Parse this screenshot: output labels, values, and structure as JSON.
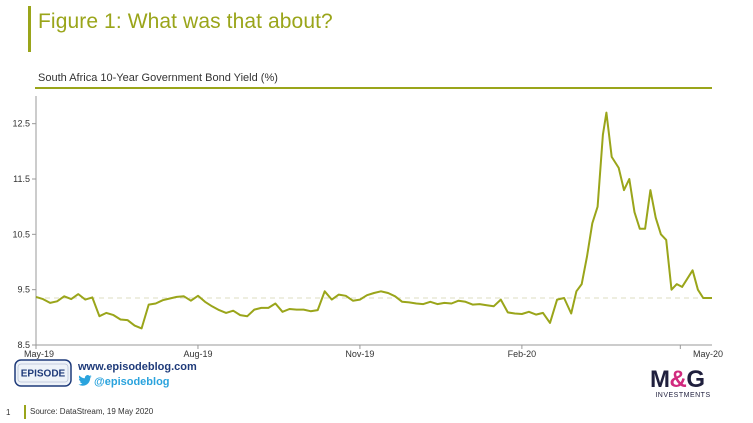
{
  "header": {
    "title": "Figure 1: What was that about?",
    "subtitle": "South Africa 10-Year Government Bond Yield (%)"
  },
  "chart_data": {
    "type": "line",
    "title": "South Africa 10-Year Government Bond Yield (%)",
    "xlabel": "",
    "ylabel": "",
    "ylim": [
      8.5,
      13.0
    ],
    "yticks": [
      "12.5",
      "11.5",
      "10.5",
      "9.5",
      "8.5"
    ],
    "ytick_values": [
      12.5,
      11.5,
      10.5,
      9.5,
      8.5
    ],
    "xtick_labels": [
      "May-19",
      "Aug-19",
      "Nov-19",
      "Feb-20",
      "May-20"
    ],
    "xtick_dates": [
      "2019-05-01",
      "2019-08-01",
      "2019-11-01",
      "2020-02-01",
      "2020-05-01"
    ],
    "x_range": [
      "2019-05-01",
      "2020-05-19"
    ],
    "reference_line": 9.35,
    "grid": false,
    "line_color": "#9aa51a",
    "series": [
      {
        "x": [
          "2019-05-01",
          "2019-05-05",
          "2019-05-09",
          "2019-05-13",
          "2019-05-17",
          "2019-05-21",
          "2019-05-25",
          "2019-05-29",
          "2019-06-02",
          "2019-06-06",
          "2019-06-10",
          "2019-06-14",
          "2019-06-18",
          "2019-06-22",
          "2019-06-26",
          "2019-06-30",
          "2019-07-04",
          "2019-07-08",
          "2019-07-12",
          "2019-07-16",
          "2019-07-20",
          "2019-07-24",
          "2019-07-28",
          "2019-08-01",
          "2019-08-05",
          "2019-08-09",
          "2019-08-13",
          "2019-08-17",
          "2019-08-21",
          "2019-08-25",
          "2019-08-29",
          "2019-09-02",
          "2019-09-06",
          "2019-09-10",
          "2019-09-14",
          "2019-09-18",
          "2019-09-22",
          "2019-09-26",
          "2019-09-30",
          "2019-10-04",
          "2019-10-08",
          "2019-10-12",
          "2019-10-16",
          "2019-10-20",
          "2019-10-24",
          "2019-10-28",
          "2019-11-01",
          "2019-11-05",
          "2019-11-09",
          "2019-11-13",
          "2019-11-17",
          "2019-11-21",
          "2019-11-25",
          "2019-11-29",
          "2019-12-03",
          "2019-12-07",
          "2019-12-11",
          "2019-12-15",
          "2019-12-19",
          "2019-12-23",
          "2019-12-27",
          "2019-12-31",
          "2020-01-04",
          "2020-01-08",
          "2020-01-12",
          "2020-01-16",
          "2020-01-20",
          "2020-01-24",
          "2020-01-28",
          "2020-02-01",
          "2020-02-05",
          "2020-02-09",
          "2020-02-13",
          "2020-02-17",
          "2020-02-21",
          "2020-02-25",
          "2020-02-29",
          "2020-03-03",
          "2020-03-06",
          "2020-03-09",
          "2020-03-12",
          "2020-03-15",
          "2020-03-18",
          "2020-03-20",
          "2020-03-23",
          "2020-03-25",
          "2020-03-27",
          "2020-03-30",
          "2020-04-02",
          "2020-04-05",
          "2020-04-08",
          "2020-04-11",
          "2020-04-14",
          "2020-04-17",
          "2020-04-20",
          "2020-04-23",
          "2020-04-26",
          "2020-04-29",
          "2020-05-02",
          "2020-05-05",
          "2020-05-08",
          "2020-05-11",
          "2020-05-14",
          "2020-05-19"
        ],
        "values": [
          9.37,
          9.33,
          9.26,
          9.29,
          9.38,
          9.33,
          9.42,
          9.32,
          9.36,
          9.02,
          9.08,
          9.04,
          8.96,
          8.95,
          8.85,
          8.8,
          9.23,
          9.25,
          9.31,
          9.34,
          9.37,
          9.38,
          9.3,
          9.39,
          9.28,
          9.2,
          9.13,
          9.08,
          9.12,
          9.04,
          9.02,
          9.14,
          9.17,
          9.17,
          9.25,
          9.1,
          9.15,
          9.14,
          9.14,
          9.11,
          9.13,
          9.47,
          9.32,
          9.41,
          9.39,
          9.3,
          9.32,
          9.4,
          9.44,
          9.47,
          9.44,
          9.38,
          9.28,
          9.27,
          9.25,
          9.24,
          9.28,
          9.24,
          9.26,
          9.25,
          9.3,
          9.28,
          9.23,
          9.24,
          9.22,
          9.2,
          9.32,
          9.09,
          9.07,
          9.06,
          9.1,
          9.05,
          9.08,
          8.9,
          9.32,
          9.35,
          9.07,
          9.47,
          9.6,
          10.1,
          10.7,
          11.0,
          12.3,
          12.7,
          11.9,
          11.8,
          11.7,
          11.3,
          11.5,
          10.9,
          10.6,
          10.6,
          11.3,
          10.8,
          10.5,
          10.4,
          9.5,
          9.6,
          9.55,
          9.7,
          9.85,
          9.5,
          9.35,
          9.35
        ]
      }
    ]
  },
  "footer": {
    "episode_logo": "EPISODE",
    "website": "www.episodeblog.com",
    "twitter": "@episodeblog",
    "twitter_icon": "twitter-bird-icon",
    "page_number": "1",
    "source": "Source: DataStream, 19 May 2020",
    "brand_logo": "M&G",
    "brand_sub": "INVESTMENTS"
  },
  "colors": {
    "accent": "#9aa51a",
    "brand_navy": "#1f1f3d",
    "brand_pink": "#d12a7e",
    "link_blue": "#1f3b7a",
    "twitter_blue": "#2aa3dd"
  }
}
